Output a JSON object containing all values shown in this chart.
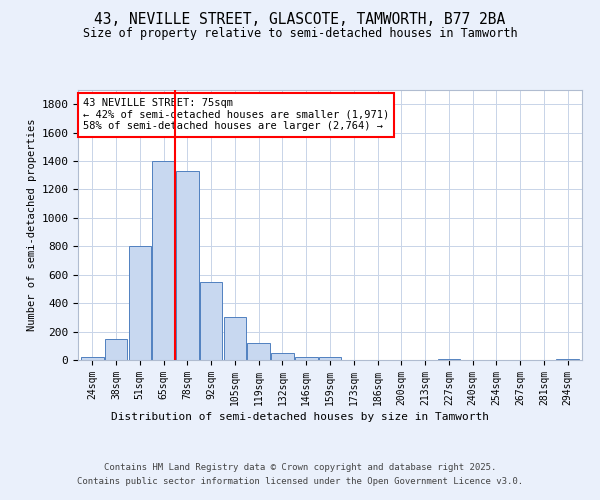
{
  "title1": "43, NEVILLE STREET, GLASCOTE, TAMWORTH, B77 2BA",
  "title2": "Size of property relative to semi-detached houses in Tamworth",
  "xlabel": "Distribution of semi-detached houses by size in Tamworth",
  "ylabel": "Number of semi-detached properties",
  "bar_labels": [
    "24sqm",
    "38sqm",
    "51sqm",
    "65sqm",
    "78sqm",
    "92sqm",
    "105sqm",
    "119sqm",
    "132sqm",
    "146sqm",
    "159sqm",
    "173sqm",
    "186sqm",
    "200sqm",
    "213sqm",
    "227sqm",
    "240sqm",
    "254sqm",
    "267sqm",
    "281sqm",
    "294sqm"
  ],
  "bar_values": [
    20,
    150,
    800,
    1400,
    1330,
    550,
    300,
    120,
    50,
    20,
    20,
    0,
    0,
    0,
    0,
    5,
    0,
    0,
    0,
    0,
    10
  ],
  "bar_color": "#c8d8f0",
  "bar_edge_color": "#5080c0",
  "vline_color": "red",
  "vline_index": 3.5,
  "annotation_text": "43 NEVILLE STREET: 75sqm\n← 42% of semi-detached houses are smaller (1,971)\n58% of semi-detached houses are larger (2,764) →",
  "annotation_box_color": "white",
  "annotation_box_edge": "red",
  "ylim": [
    0,
    1900
  ],
  "yticks": [
    0,
    200,
    400,
    600,
    800,
    1000,
    1200,
    1400,
    1600,
    1800
  ],
  "footer1": "Contains HM Land Registry data © Crown copyright and database right 2025.",
  "footer2": "Contains public sector information licensed under the Open Government Licence v3.0.",
  "bg_color": "#eaf0fb",
  "plot_bg_color": "white",
  "grid_color": "#c8d4e8"
}
